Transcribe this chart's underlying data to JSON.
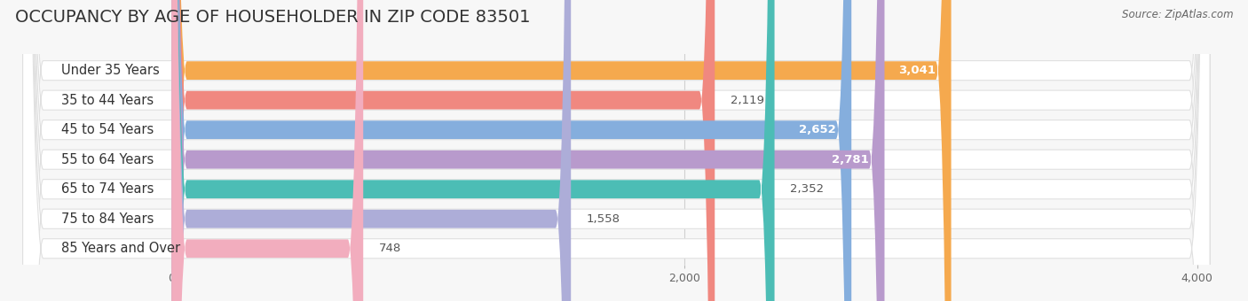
{
  "title": "OCCUPANCY BY AGE OF HOUSEHOLDER IN ZIP CODE 83501",
  "source": "Source: ZipAtlas.com",
  "categories": [
    "Under 35 Years",
    "35 to 44 Years",
    "45 to 54 Years",
    "55 to 64 Years",
    "65 to 74 Years",
    "75 to 84 Years",
    "85 Years and Over"
  ],
  "values": [
    3041,
    2119,
    2652,
    2781,
    2352,
    1558,
    748
  ],
  "bar_colors": [
    "#F5A94E",
    "#F08880",
    "#85AEDD",
    "#B89ACC",
    "#4CBDB5",
    "#ADADD8",
    "#F2ADBE"
  ],
  "value_label_inside": [
    true,
    false,
    true,
    true,
    false,
    false,
    false
  ],
  "xlim": [
    0,
    4000
  ],
  "xticks": [
    0,
    2000,
    4000
  ],
  "background_color": "#f7f7f7",
  "row_bg_color": "#ffffff",
  "row_border_color": "#e0e0e0",
  "title_fontsize": 14,
  "label_fontsize": 10.5,
  "value_fontsize": 9.5
}
